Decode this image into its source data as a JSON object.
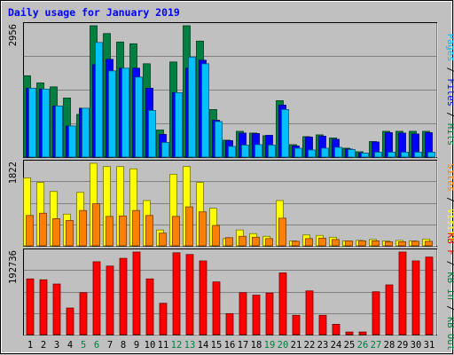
{
  "chart_data": [
    {
      "type": "bar",
      "title": "Daily usage for January 2019",
      "categories": [
        "1",
        "2",
        "3",
        "4",
        "5",
        "6",
        "7",
        "8",
        "9",
        "10",
        "11",
        "12",
        "13",
        "14",
        "15",
        "16",
        "17",
        "18",
        "19",
        "20",
        "21",
        "22",
        "23",
        "24",
        "25",
        "26",
        "27",
        "28",
        "29",
        "30",
        "31"
      ],
      "weekend_categories": [
        "5",
        "6",
        "12",
        "13",
        "19",
        "20",
        "26",
        "27"
      ],
      "ymax_label": "2956",
      "ylim": [
        0,
        2956
      ],
      "ylabel_parts": [
        {
          "text": "Pages",
          "color": "#00c0ff"
        },
        {
          "text": " / ",
          "color": "#000000"
        },
        {
          "text": "Files",
          "color": "#0000ff"
        },
        {
          "text": " / ",
          "color": "#000000"
        },
        {
          "text": "Hits",
          "color": "#008040"
        }
      ],
      "series": [
        {
          "name": "Hits",
          "color": "#008040",
          "values": [
            1830,
            1670,
            1580,
            1330,
            960,
            2956,
            2780,
            2590,
            2550,
            2100,
            610,
            2140,
            2956,
            2610,
            1070,
            380,
            580,
            540,
            480,
            1270,
            280,
            460,
            500,
            430,
            200,
            120,
            350,
            580,
            580,
            580,
            580
          ]
        },
        {
          "name": "Files",
          "color": "#0000ff",
          "values": [
            1550,
            1530,
            1150,
            700,
            1100,
            2080,
            2200,
            2000,
            2000,
            1550,
            510,
            1450,
            2000,
            2180,
            830,
            370,
            540,
            530,
            490,
            1170,
            250,
            450,
            470,
            400,
            180,
            90,
            340,
            550,
            540,
            520,
            550
          ]
        },
        {
          "name": "Pages",
          "color": "#00c0ff",
          "values": [
            1550,
            1530,
            1150,
            700,
            1100,
            2580,
            1940,
            2000,
            1800,
            1050,
            330,
            1450,
            2250,
            2100,
            800,
            240,
            270,
            280,
            270,
            1070,
            200,
            160,
            200,
            220,
            170,
            90,
            110,
            110,
            110,
            110,
            110
          ]
        }
      ]
    },
    {
      "type": "bar",
      "ymax_label": "1822",
      "ylim": [
        0,
        1822
      ],
      "ylabel_parts": [
        {
          "text": "Sites",
          "color": "#ff8000"
        },
        {
          "text": " / ",
          "color": "#000000"
        },
        {
          "text": "Visits",
          "color": "#ffff00"
        }
      ],
      "series": [
        {
          "name": "Visits",
          "color": "#ffff00",
          "values": [
            1500,
            1400,
            1200,
            700,
            1180,
            1822,
            1750,
            1750,
            1700,
            1000,
            350,
            1580,
            1750,
            1400,
            830,
            160,
            350,
            270,
            210,
            1000,
            110,
            240,
            230,
            190,
            110,
            120,
            140,
            110,
            120,
            110,
            150
          ]
        },
        {
          "name": "Sites",
          "color": "#ff8000",
          "values": [
            670,
            720,
            600,
            560,
            780,
            930,
            650,
            660,
            780,
            670,
            280,
            650,
            860,
            750,
            450,
            180,
            210,
            190,
            160,
            610,
            100,
            160,
            170,
            140,
            110,
            110,
            110,
            90,
            90,
            100,
            100
          ]
        }
      ]
    },
    {
      "type": "bar",
      "ymax_label": "192736",
      "ylim": [
        0,
        192736
      ],
      "ylabel_parts": [
        {
          "text": "KB F",
          "color": "#ff0000"
        },
        {
          "text": " / ",
          "color": "#000000"
        },
        {
          "text": "KB In",
          "color": "#008040"
        },
        {
          "text": " / ",
          "color": "#000000"
        },
        {
          "text": "KB Out",
          "color": "#008040"
        }
      ],
      "series": [
        {
          "name": "KB F",
          "color": "#ff0000",
          "values": [
            130000,
            128000,
            118000,
            62000,
            98000,
            170000,
            160000,
            178000,
            192736,
            130000,
            73000,
            191000,
            187000,
            172000,
            123000,
            49000,
            98000,
            92000,
            97000,
            144000,
            45000,
            102000,
            45000,
            24000,
            6000,
            6000,
            100000,
            116000,
            192736,
            172000,
            181000
          ]
        }
      ]
    }
  ]
}
